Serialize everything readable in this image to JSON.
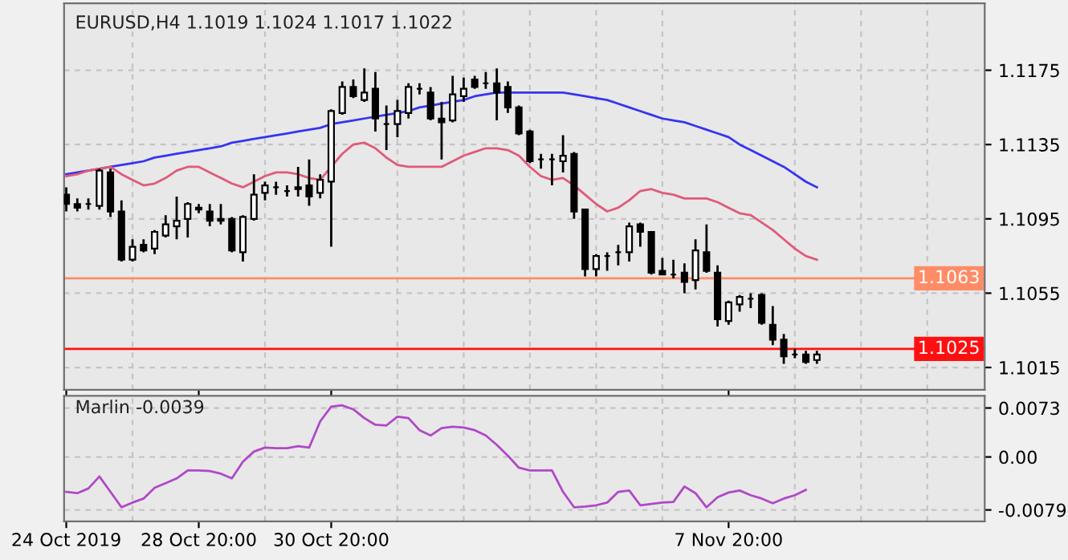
{
  "chart_data": [
    {
      "type": "candlestick",
      "title": "EURUSD,H4 1.1019 1.1024 1.1017 1.1022",
      "categories": [
        null,
        null,
        null,
        null,
        null,
        null,
        null,
        null,
        null,
        null,
        null,
        null,
        null,
        null,
        null,
        null,
        null,
        null,
        null,
        null,
        null,
        null,
        null,
        null,
        null,
        null,
        null,
        null,
        null,
        null,
        null,
        null,
        null,
        null,
        null,
        null,
        null,
        null,
        null,
        null,
        null,
        null,
        null,
        null,
        null,
        null,
        null,
        null,
        null,
        null,
        null,
        null,
        null,
        null,
        null,
        null,
        null,
        null,
        null,
        null,
        null,
        null,
        null,
        null,
        null,
        null,
        null,
        null,
        null
      ],
      "ohlc": [
        [
          1.1108,
          1.1112,
          1.1099,
          1.1103
        ],
        [
          1.1103,
          1.1106,
          1.1099,
          1.1101
        ],
        [
          1.1103,
          1.1106,
          1.11,
          1.1103
        ],
        [
          1.1102,
          1.1122,
          1.11,
          1.1121
        ],
        [
          1.112,
          1.1122,
          1.1096,
          1.1099
        ],
        [
          1.1099,
          1.1105,
          1.1072,
          1.1073
        ],
        [
          1.1073,
          1.1084,
          1.1072,
          1.108
        ],
        [
          1.1081,
          1.1084,
          1.1077,
          1.1078
        ],
        [
          1.1079,
          1.1089,
          1.1076,
          1.1088
        ],
        [
          1.1086,
          1.1097,
          1.1085,
          1.1092
        ],
        [
          1.1091,
          1.1107,
          1.1084,
          1.1094
        ],
        [
          1.1095,
          1.1104,
          1.1085,
          1.1103
        ],
        [
          1.1101,
          1.1103,
          1.1098,
          1.11
        ],
        [
          1.1099,
          1.1103,
          1.1091,
          1.1094
        ],
        [
          1.1095,
          1.1103,
          1.1092,
          1.1094
        ],
        [
          1.1095,
          1.1096,
          1.1077,
          1.1078
        ],
        [
          1.1077,
          1.1097,
          1.1072,
          1.1096
        ],
        [
          1.1095,
          1.1119,
          1.1094,
          1.1108
        ],
        [
          1.1109,
          1.1115,
          1.1105,
          1.1113
        ],
        [
          1.1112,
          1.1115,
          1.1108,
          1.1112
        ],
        [
          1.111,
          1.1113,
          1.1107,
          1.111
        ],
        [
          1.1112,
          1.1123,
          1.1107,
          1.1111
        ],
        [
          1.1113,
          1.1127,
          1.1102,
          1.1107
        ],
        [
          1.1109,
          1.1119,
          1.1106,
          1.1116
        ],
        [
          1.1115,
          1.1154,
          1.108,
          1.1153
        ],
        [
          1.1152,
          1.1169,
          1.1151,
          1.1166
        ],
        [
          1.1166,
          1.117,
          1.116,
          1.1161
        ],
        [
          1.1159,
          1.1176,
          1.1158,
          1.1163
        ],
        [
          1.1165,
          1.1174,
          1.1142,
          1.1149
        ],
        [
          1.1146,
          1.1156,
          1.1132,
          1.1146
        ],
        [
          1.1146,
          1.1159,
          1.1139,
          1.1153
        ],
        [
          1.1152,
          1.1168,
          1.1149,
          1.1166
        ],
        [
          1.1165,
          1.1168,
          1.1162,
          1.1165
        ],
        [
          1.1163,
          1.1166,
          1.1148,
          1.1149
        ],
        [
          1.1149,
          1.1158,
          1.1127,
          1.1147
        ],
        [
          1.1148,
          1.1172,
          1.1147,
          1.1162
        ],
        [
          1.1161,
          1.1171,
          1.1158,
          1.1165
        ],
        [
          1.117,
          1.1172,
          1.1165,
          1.1166
        ],
        [
          1.1168,
          1.1174,
          1.1165,
          1.1168
        ],
        [
          1.1168,
          1.1176,
          1.1148,
          1.1163
        ],
        [
          1.1166,
          1.1169,
          1.1152,
          1.1155
        ],
        [
          1.1155,
          1.1156,
          1.114,
          1.1141
        ],
        [
          1.1142,
          1.1143,
          1.1125,
          1.1126
        ],
        [
          1.1127,
          1.113,
          1.1122,
          1.1127
        ],
        [
          1.1127,
          1.113,
          1.1113,
          1.1127
        ],
        [
          1.1126,
          1.114,
          1.112,
          1.1129
        ],
        [
          1.113,
          1.1131,
          1.1095,
          1.1099
        ],
        [
          1.11,
          1.11,
          1.1064,
          1.1068
        ],
        [
          1.1068,
          1.1076,
          1.1064,
          1.1075
        ],
        [
          1.1075,
          1.1077,
          1.1067,
          1.1075
        ],
        [
          1.1077,
          1.1081,
          1.107,
          1.1077
        ],
        [
          1.1077,
          1.1093,
          1.1072,
          1.1091
        ],
        [
          1.1092,
          1.1093,
          1.108,
          1.1088
        ],
        [
          1.1088,
          1.1088,
          1.1065,
          1.1066
        ],
        [
          1.1067,
          1.1074,
          1.1065,
          1.1065
        ],
        [
          1.1065,
          1.1073,
          1.1063,
          1.1065
        ],
        [
          1.1066,
          1.1071,
          1.1055,
          1.1061
        ],
        [
          1.1062,
          1.1084,
          1.1057,
          1.1078
        ],
        [
          1.1077,
          1.1092,
          1.1066,
          1.1067
        ],
        [
          1.1066,
          1.107,
          1.1037,
          1.1041
        ],
        [
          1.104,
          1.1051,
          1.1038,
          1.105
        ],
        [
          1.1049,
          1.1054,
          1.1045,
          1.1053
        ],
        [
          1.1052,
          1.1055,
          1.1047,
          1.1052
        ],
        [
          1.1054,
          1.1055,
          1.1038,
          1.1039
        ],
        [
          1.1038,
          1.1048,
          1.1027,
          1.103
        ],
        [
          1.103,
          1.1033,
          1.1017,
          1.1021
        ],
        [
          1.1022,
          1.1025,
          1.102,
          1.1022
        ],
        [
          1.1022,
          1.1024,
          1.1017,
          1.1018
        ],
        [
          1.1019,
          1.1024,
          1.1017,
          1.1022
        ]
      ],
      "series": [
        {
          "type": "line",
          "color": "#3535f0",
          "values": [
            1.1119,
            1.112,
            1.1121,
            1.1122,
            1.1123,
            1.1124,
            1.1125,
            1.1126,
            1.1128,
            1.1129,
            1.113,
            1.1131,
            1.1132,
            1.1133,
            1.1134,
            1.1136,
            1.1137,
            1.1138,
            1.1139,
            1.114,
            1.1141,
            1.1142,
            1.1143,
            1.1144,
            1.1146,
            1.1147,
            1.1148,
            1.1149,
            1.115,
            1.1151,
            1.1152,
            1.1153,
            1.1155,
            1.1156,
            1.1157,
            1.1158,
            1.1159,
            1.1161,
            1.1162,
            1.1163,
            1.1163,
            1.1163,
            1.1163,
            1.1163,
            1.1163,
            1.1163,
            1.1162,
            1.1161,
            1.116,
            1.1159,
            1.1157,
            1.1155,
            1.1153,
            1.1151,
            1.1149,
            1.1148,
            1.1147,
            1.1145,
            1.1143,
            1.1141,
            1.1139,
            1.1135,
            1.1132,
            1.1129,
            1.1126,
            1.1123,
            1.1119,
            1.1115,
            1.1112
          ]
        },
        {
          "type": "line",
          "color": "#e05a78",
          "values": [
            1.1118,
            1.1119,
            1.1121,
            1.1122,
            1.1123,
            1.1119,
            1.1116,
            1.1113,
            1.1114,
            1.1117,
            1.1121,
            1.1123,
            1.1123,
            1.112,
            1.1117,
            1.1114,
            1.1112,
            1.1115,
            1.1118,
            1.112,
            1.112,
            1.1119,
            1.1117,
            1.1116,
            1.1123,
            1.113,
            1.1135,
            1.1136,
            1.1133,
            1.1128,
            1.1124,
            1.1123,
            1.1123,
            1.1123,
            1.1123,
            1.1126,
            1.1129,
            1.1131,
            1.1133,
            1.1133,
            1.1132,
            1.1129,
            1.1123,
            1.1118,
            1.1116,
            1.1117,
            1.1113,
            1.1108,
            1.1103,
            1.1099,
            1.1101,
            1.1105,
            1.111,
            1.1111,
            1.1109,
            1.1108,
            1.1106,
            1.1106,
            1.1106,
            1.1104,
            1.1101,
            1.1098,
            1.1097,
            1.1093,
            1.1089,
            1.1084,
            1.1079,
            1.1075,
            1.1073
          ]
        }
      ],
      "ylim": [
        1.1003,
        1.1211
      ],
      "yticks": [
        1.1015,
        1.1055,
        1.1095,
        1.1135,
        1.1175
      ],
      "ref_lines": [
        {
          "axis": "y",
          "value": 1.1063,
          "label": "1.1063",
          "color": "#ff8c66"
        },
        {
          "axis": "y",
          "value": 1.1025,
          "label": "1.1025",
          "color": "#ff1010"
        }
      ],
      "grid": true,
      "tick_labels": "y"
    },
    {
      "type": "line",
      "title": "Marlin -0.0039",
      "categories": [
        "24 Oct 2019",
        null,
        null,
        null,
        null,
        null,
        null,
        null,
        null,
        null,
        null,
        null,
        "28 Oct 20:00",
        null,
        null,
        null,
        null,
        null,
        null,
        null,
        null,
        null,
        null,
        null,
        "30 Oct 20:00",
        null,
        null,
        null,
        null,
        null,
        null,
        null,
        null,
        null,
        null,
        null,
        null,
        null,
        null,
        null,
        null,
        null,
        null,
        null,
        null,
        null,
        null,
        null,
        null,
        null,
        null,
        null,
        null,
        null,
        null,
        null,
        null,
        null,
        null,
        null,
        "7 Nov 20:00",
        null,
        null,
        null,
        null,
        null,
        null,
        null,
        null
      ],
      "series": [
        {
          "color": "#b048c8",
          "values": [
            -0.0052,
            -0.0054,
            -0.0047,
            -0.0029,
            -0.0052,
            -0.0075,
            -0.0068,
            -0.0062,
            -0.0046,
            -0.0039,
            -0.0032,
            -0.002,
            -0.002,
            -0.0021,
            -0.0025,
            -0.0032,
            -0.0007,
            0.0008,
            0.0014,
            0.0013,
            0.0013,
            0.0016,
            0.0014,
            0.0053,
            0.0075,
            0.0077,
            0.0071,
            0.0058,
            0.0048,
            0.0047,
            0.006,
            0.0058,
            0.004,
            0.0032,
            0.0043,
            0.0045,
            0.0044,
            0.004,
            0.0032,
            0.0018,
            0.0002,
            -0.0016,
            -0.002,
            -0.002,
            -0.002,
            -0.0052,
            -0.0075,
            -0.0074,
            -0.0072,
            -0.0068,
            -0.0052,
            -0.005,
            -0.0072,
            -0.007,
            -0.0068,
            -0.0067,
            -0.0044,
            -0.0054,
            -0.0075,
            -0.006,
            -0.0053,
            -0.005,
            -0.0057,
            -0.0062,
            -0.0069,
            -0.0062,
            -0.0057,
            -0.0049,
            null
          ]
        }
      ],
      "ylim": [
        -0.0096,
        0.0091
      ],
      "yticks": [
        0.0073,
        {
          "value": 0,
          "label": "0.00"
        },
        -0.0079
      ],
      "grid": true
    }
  ]
}
